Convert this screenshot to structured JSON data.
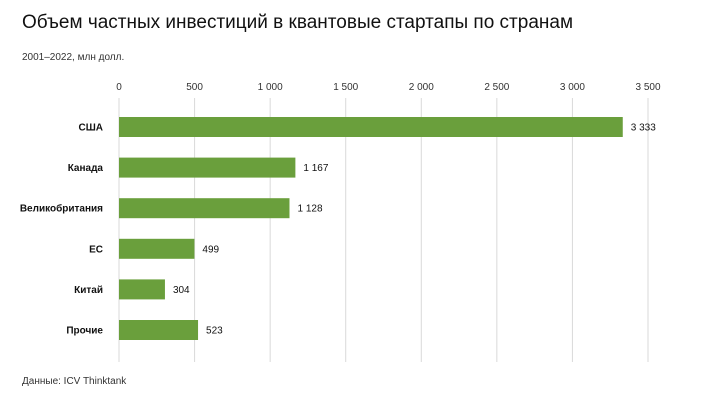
{
  "chart_data": {
    "type": "bar",
    "orientation": "horizontal",
    "title": "Объем частных инвестиций в квантовые стартапы по странам",
    "subtitle": "2001–2022, млн долл.",
    "source": "Данные: ICV Thinktank",
    "categories": [
      "США",
      "Канада",
      "Великобритания",
      "ЕС",
      "Китай",
      "Прочие"
    ],
    "values": [
      3333,
      1167,
      1128,
      499,
      304,
      523
    ],
    "value_labels": [
      "3 333",
      "1 167",
      "1 128",
      "499",
      "304",
      "523"
    ],
    "xlim": [
      0,
      3500
    ],
    "x_ticks": [
      0,
      500,
      1000,
      1500,
      2000,
      2500,
      3000,
      3500
    ],
    "x_tick_labels": [
      "0",
      "500",
      "1 000",
      "1 500",
      "2 000",
      "2 500",
      "3 000",
      "3 500"
    ],
    "axis_position": "top",
    "grid": true,
    "bar_color": "#6a9f3c",
    "grid_color": "#d9d9d9"
  }
}
